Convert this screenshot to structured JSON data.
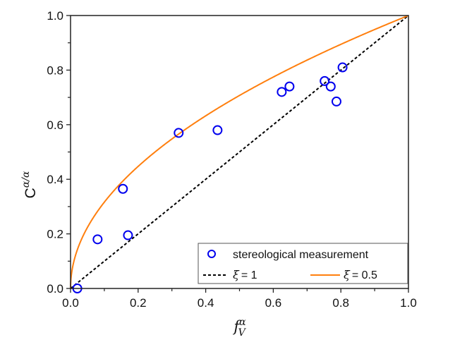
{
  "chart_data": {
    "type": "scatter",
    "title": "",
    "xlabel": "f",
    "xlabel_sub": "V",
    "xlabel_sup": "α",
    "ylabel": "C",
    "ylabel_sup": "α/α",
    "xlim": [
      0.0,
      1.0
    ],
    "ylim": [
      0.0,
      1.0
    ],
    "xticks": [
      "0.0",
      "0.2",
      "0.4",
      "0.6",
      "0.8",
      "1.0"
    ],
    "yticks": [
      "0.0",
      "0.2",
      "0.4",
      "0.6",
      "0.8",
      "1.0"
    ],
    "grid": false,
    "legend_position": "bottom-right",
    "series": [
      {
        "name": "stereological measurement",
        "kind": "scatter",
        "color": "#0000ee",
        "x": [
          0.02,
          0.08,
          0.155,
          0.17,
          0.32,
          0.435,
          0.625,
          0.648,
          0.752,
          0.77,
          0.787,
          0.805
        ],
        "y": [
          0.0,
          0.18,
          0.365,
          0.195,
          0.57,
          0.58,
          0.72,
          0.74,
          0.76,
          0.74,
          0.685,
          0.81
        ]
      },
      {
        "name": "ξ = 1",
        "symbol": "ξ",
        "value_label": "= 1",
        "kind": "line",
        "style": "dashed",
        "color": "#000000",
        "exponent": 1
      },
      {
        "name": "ξ = 0.5",
        "symbol": "ξ",
        "value_label": "= 0.5",
        "kind": "line",
        "style": "solid",
        "color": "#ff7f0e",
        "exponent": 0.5
      }
    ]
  }
}
